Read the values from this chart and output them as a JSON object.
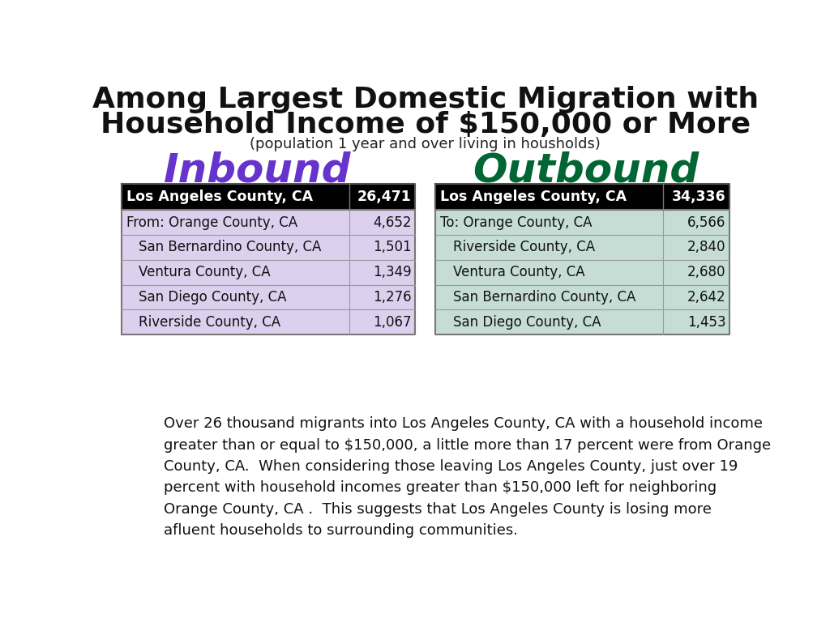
{
  "title_line1": "Among Largest Domestic Migration with",
  "title_line2": "Household Income of $150,000 or More",
  "subtitle": "(population 1 year and over living in housholds)",
  "inbound_label": "Inbound",
  "outbound_label": "Outbound",
  "inbound_color": "#6633cc",
  "outbound_color": "#006633",
  "inbound_header": [
    "Los Angeles County, CA",
    "26,471"
  ],
  "inbound_rows": [
    [
      "From: Orange County, CA",
      "4,652"
    ],
    [
      "San Bernardino County, CA",
      "1,501"
    ],
    [
      "Ventura County, CA",
      "1,349"
    ],
    [
      "San Diego County, CA",
      "1,276"
    ],
    [
      "Riverside County, CA",
      "1,067"
    ]
  ],
  "outbound_header": [
    "Los Angeles County, CA",
    "34,336"
  ],
  "outbound_rows": [
    [
      "To: Orange County, CA",
      "6,566"
    ],
    [
      "Riverside County, CA",
      "2,840"
    ],
    [
      "Ventura County, CA",
      "2,680"
    ],
    [
      "San Bernardino County, CA",
      "2,642"
    ],
    [
      "San Diego County, CA",
      "1,453"
    ]
  ],
  "inbound_row_color": "#ddd0ee",
  "outbound_row_color": "#c5ddd5",
  "header_bg": "#000000",
  "header_fg": "#ffffff",
  "body_text": "Over 26 thousand migrants into Los Angeles County, CA with a household income\ngreater than or equal to $150,000, a little more than 17 percent were from Orange\nCounty, CA.  When considering those leaving Los Angeles County, just over 19\npercent with household incomes greater than $150,000 left for neighboring\nOrange County, CA .  This suggests that Los Angeles County is losing more\nafluent households to surrounding communities.",
  "bg_color": "#ffffff",
  "title_fontsize": 26,
  "subtitle_fontsize": 13,
  "label_fontsize": 36,
  "header_fontsize": 12.5,
  "row_fontsize": 12,
  "body_fontsize": 13
}
